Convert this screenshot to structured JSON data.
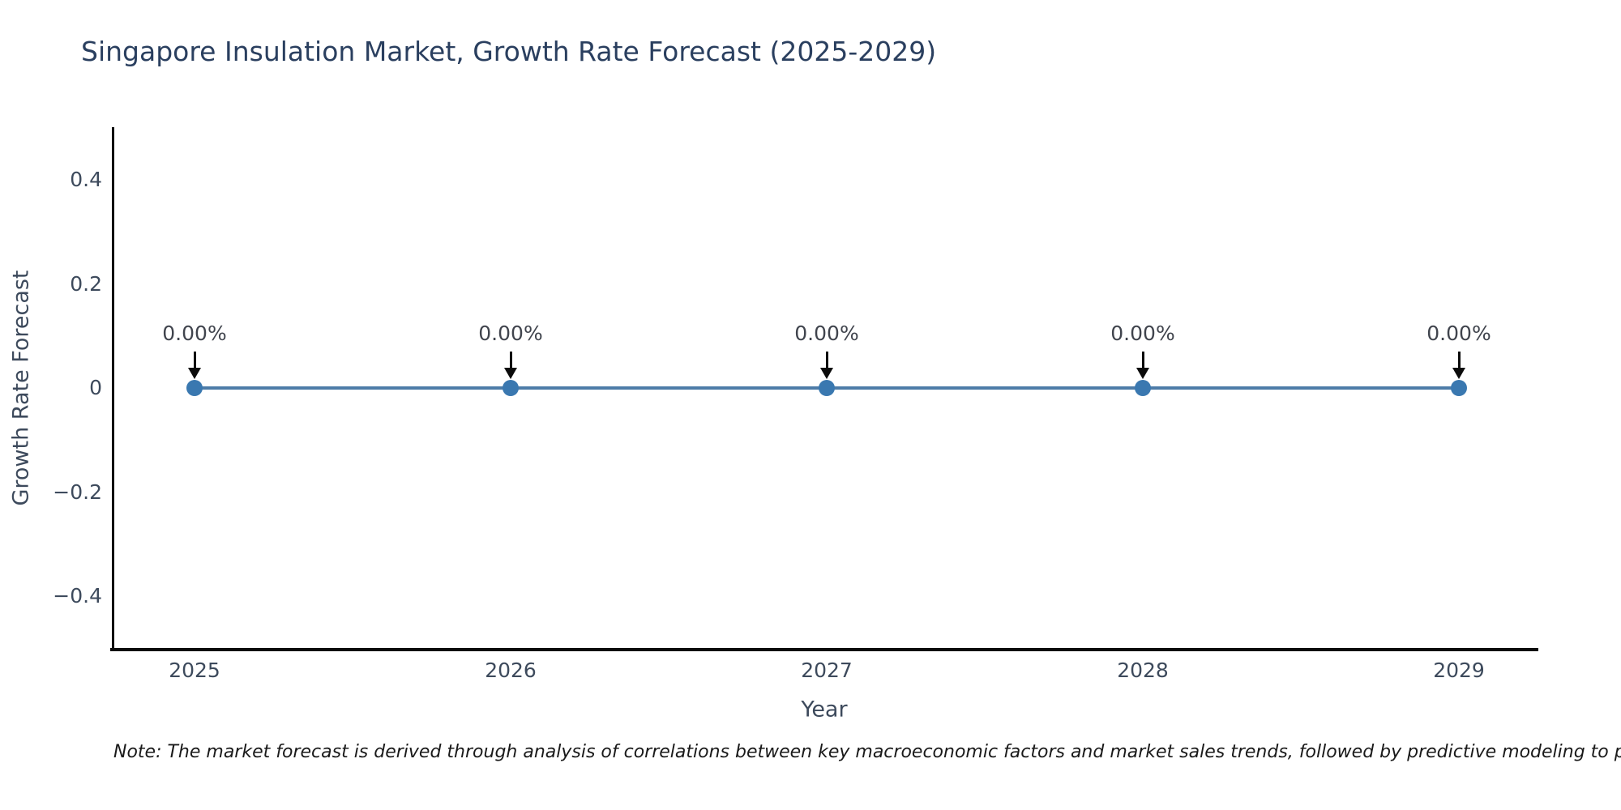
{
  "title": "Singapore Insulation Market, Growth Rate Forecast (2025-2029)",
  "note": "Note: The market forecast is derived through analysis of correlations between key macroeconomic factors and market sales trends, followed by predictive modeling to project future sa",
  "chart_data": {
    "type": "line",
    "title": "Singapore Insulation Market, Growth Rate Forecast (2025-2029)",
    "xlabel": "Year",
    "ylabel": "Growth Rate Forecast",
    "categories": [
      "2025",
      "2026",
      "2027",
      "2028",
      "2029"
    ],
    "series": [
      {
        "name": "Growth Rate Forecast",
        "values": [
          0.0,
          0.0,
          0.0,
          0.0,
          0.0
        ]
      }
    ],
    "point_labels": [
      "0.00%",
      "0.00%",
      "0.00%",
      "0.00%",
      "0.00%"
    ],
    "ylim": [
      -0.5,
      0.5
    ],
    "yticks": {
      "values": [
        0.4,
        0.2,
        0,
        -0.2,
        -0.4
      ],
      "labels": [
        "0.4",
        "0.2",
        "0",
        "−0.2",
        "−0.4"
      ]
    },
    "grid": false,
    "legend": "none",
    "annotation_arrows": true,
    "colors": {
      "line": "#4d7ca8",
      "marker": "#3a78b0",
      "arrow": "#0b0b0b",
      "title_text": "#2a3f5f",
      "axis_text": "#3d4a5c",
      "annotation_text": "#40444d",
      "note_text": "#1a1a1a",
      "spine": "#0b0b0b",
      "background": "#ffffff"
    }
  }
}
